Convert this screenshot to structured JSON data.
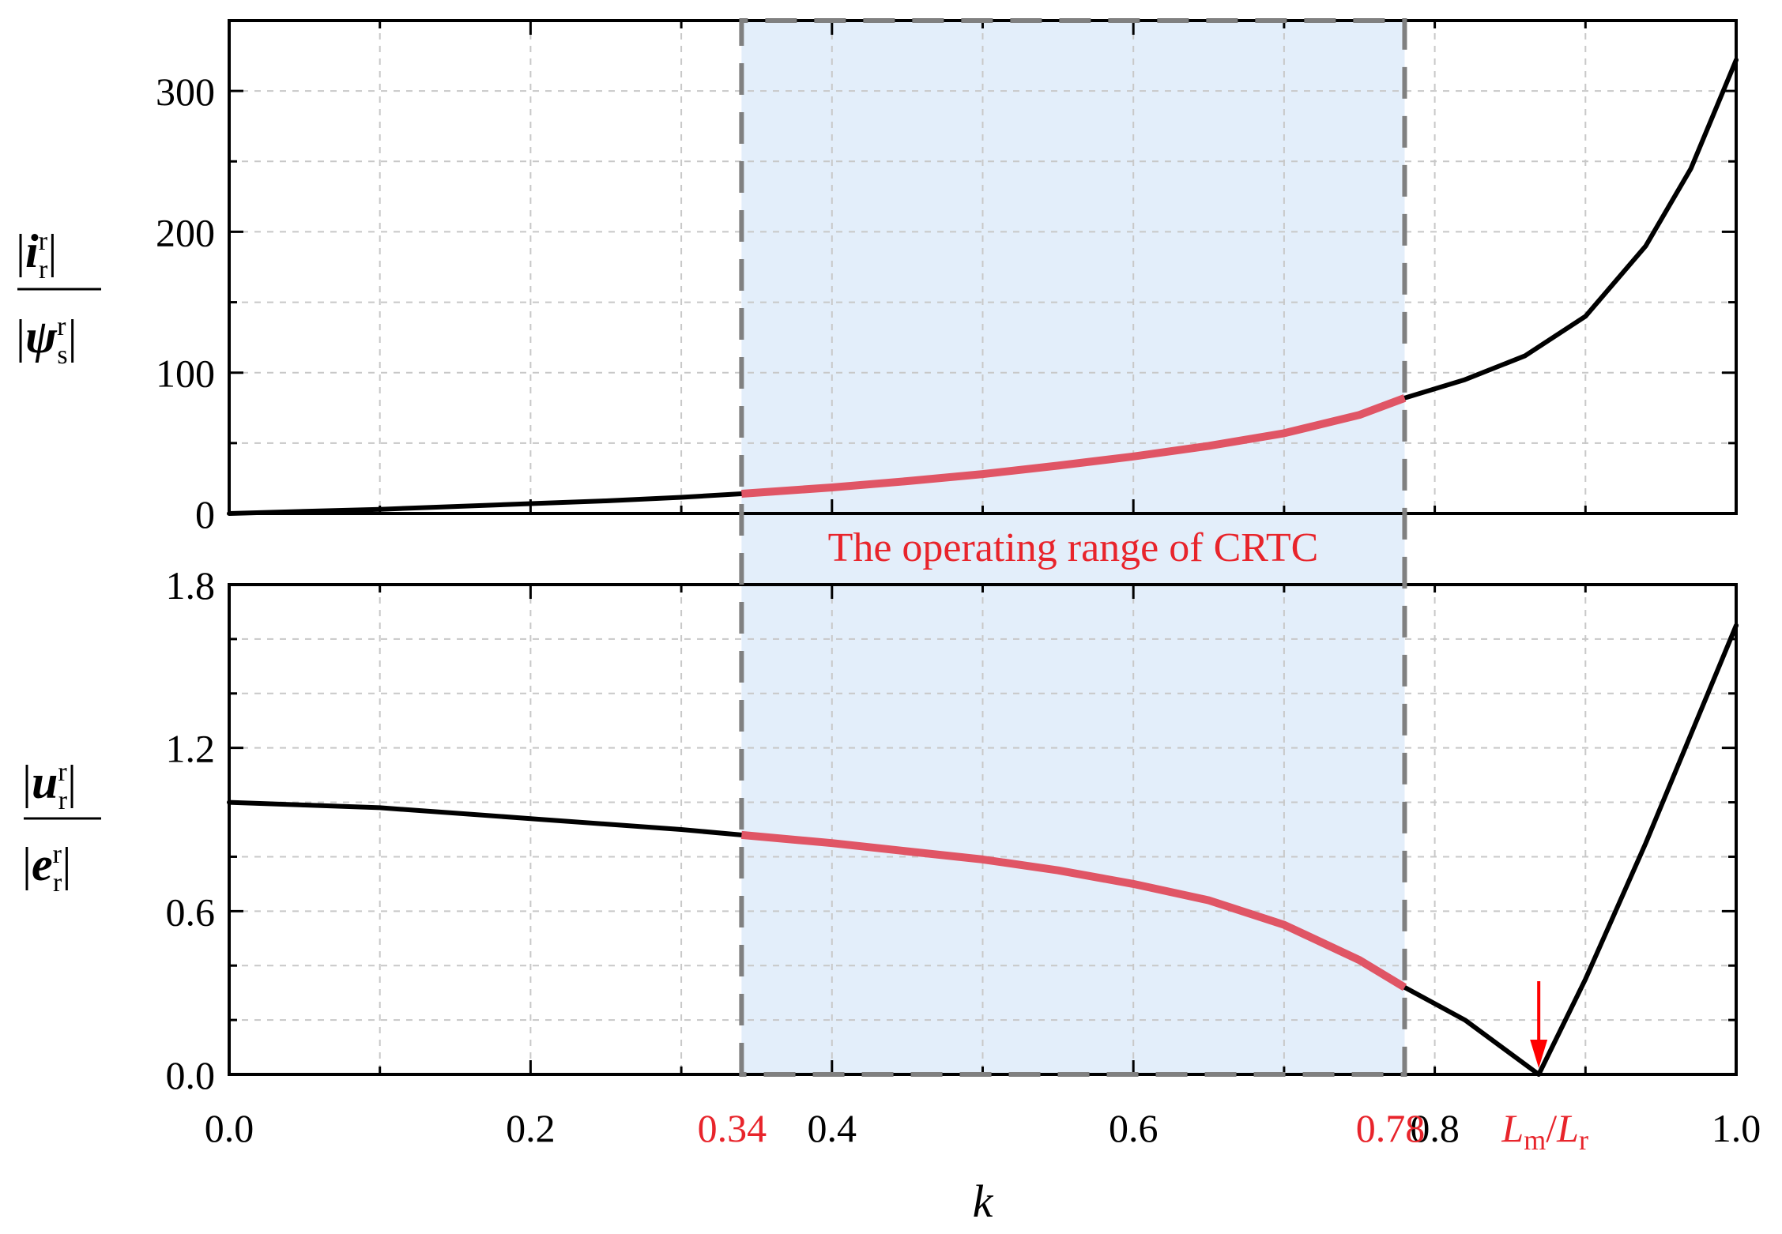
{
  "chart_data": [
    {
      "type": "line",
      "panel": "top",
      "xlim": [
        0,
        1
      ],
      "ylim": [
        0,
        350
      ],
      "grid": true,
      "yticks": [
        0,
        100,
        200,
        300
      ],
      "ytick_labels": [
        "0",
        "100",
        "200",
        "300"
      ],
      "ylabel": {
        "numerator": {
          "symbol": "i",
          "subscript": "r",
          "superscript": "r"
        },
        "denominator": {
          "symbol": "ψ",
          "subscript": "s",
          "superscript": "r"
        }
      },
      "series": [
        {
          "color": "#000000",
          "x": [
            0,
            0.05,
            0.1,
            0.15,
            0.2,
            0.25,
            0.3,
            0.34,
            0.4,
            0.45,
            0.5,
            0.55,
            0.6,
            0.65,
            0.7,
            0.75,
            0.78,
            0.82,
            0.86,
            0.9,
            0.94,
            0.97,
            1.0
          ],
          "y": [
            0,
            1.5,
            3,
            5,
            7,
            9,
            11.5,
            14,
            18.5,
            23,
            28,
            34,
            40.5,
            48,
            57,
            70,
            82,
            95,
            112,
            140,
            190,
            245,
            322
          ]
        }
      ],
      "highlight_range": [
        0.34,
        0.78
      ],
      "highlight_color": "#e05565",
      "region_label": "The operating range of CRTC"
    },
    {
      "type": "line",
      "panel": "bottom",
      "xlim": [
        0,
        1
      ],
      "ylim": [
        0,
        1.8
      ],
      "grid": true,
      "yticks": [
        0,
        0.6,
        1.2,
        1.8
      ],
      "ytick_labels": [
        "0.0",
        "0.6",
        "1.2",
        "1.8"
      ],
      "xticks": [
        0,
        0.2,
        0.4,
        0.6,
        0.8,
        1.0
      ],
      "xtick_labels": [
        "0.0",
        "0.2",
        "0.4",
        "0.6",
        "0.8",
        "1.0"
      ],
      "xlabel": "k",
      "ylabel": {
        "numerator": {
          "symbol": "u",
          "subscript": "r",
          "superscript": "r"
        },
        "denominator": {
          "symbol": "e",
          "subscript": "r",
          "superscript": "r"
        }
      },
      "series": [
        {
          "color": "#000000",
          "x": [
            0,
            0.05,
            0.1,
            0.15,
            0.2,
            0.25,
            0.3,
            0.34,
            0.4,
            0.45,
            0.5,
            0.55,
            0.6,
            0.65,
            0.7,
            0.75,
            0.78,
            0.82,
            0.869,
            0.9,
            0.94,
            0.97,
            1.0
          ],
          "y": [
            1.0,
            0.99,
            0.98,
            0.96,
            0.94,
            0.92,
            0.9,
            0.88,
            0.85,
            0.82,
            0.79,
            0.75,
            0.7,
            0.64,
            0.55,
            0.42,
            0.32,
            0.2,
            0.0,
            0.35,
            0.85,
            1.25,
            1.65
          ]
        }
      ],
      "highlight_range": [
        0.34,
        0.78
      ],
      "highlight_color": "#e05565",
      "annotations": [
        {
          "x": 0.34,
          "label": "0.34",
          "color": "#e8242b"
        },
        {
          "x": 0.78,
          "label": "0.78",
          "color": "#e8242b"
        },
        {
          "x": 0.869,
          "label_main": "L",
          "label_sub1": "m",
          "label_slash": "/",
          "label_main2": "L",
          "label_sub2": "r",
          "color": "#e8242b",
          "arrow": true
        }
      ]
    }
  ],
  "colors": {
    "shade": "#e3eefa",
    "dashed_border": "#808080",
    "grid": "#c8c8c8",
    "axis": "#000000"
  }
}
